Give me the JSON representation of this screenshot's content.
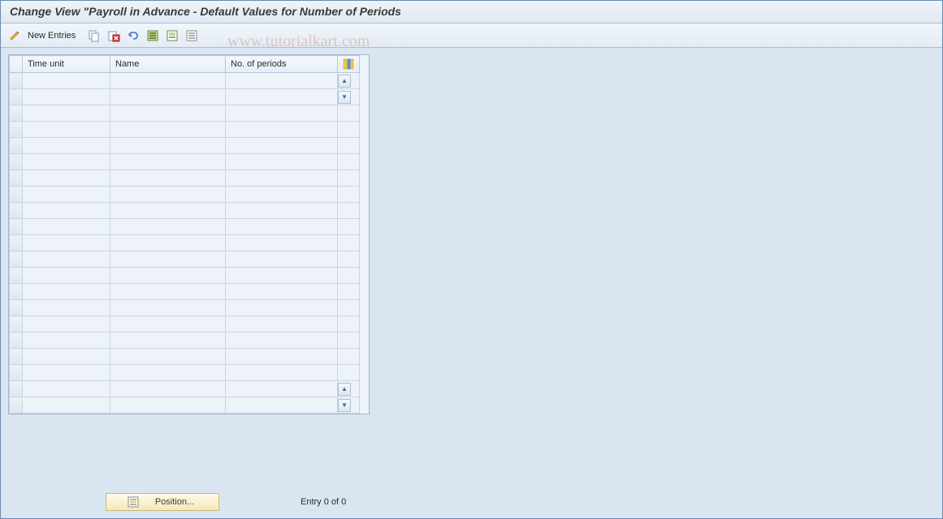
{
  "title": "Change View \"Payroll in Advance - Default Values for Number of Periods",
  "toolbar": {
    "new_entries_label": "New Entries"
  },
  "watermark": "www.tutorialkart.com",
  "table": {
    "columns": {
      "time_unit": "Time unit",
      "name": "Name",
      "no_periods": "No. of periods"
    },
    "row_count": 21,
    "column_widths": {
      "selector": 16,
      "time_unit": 108,
      "name": 142,
      "no_periods": 138
    }
  },
  "footer": {
    "position_label": "Position...",
    "entry_status": "Entry 0 of 0"
  },
  "colors": {
    "background": "#d9e5f0",
    "header_gradient_top": "#f0f4f9",
    "header_gradient_bottom": "#dfe8f2",
    "border": "#a8bed6",
    "table_bg": "#eef3f9",
    "cell_border": "#c8d6e4",
    "position_btn_top": "#fef9e8",
    "position_btn_bottom": "#f5e9b8",
    "watermark_color": "rgba(200,120,90,0.35)"
  }
}
